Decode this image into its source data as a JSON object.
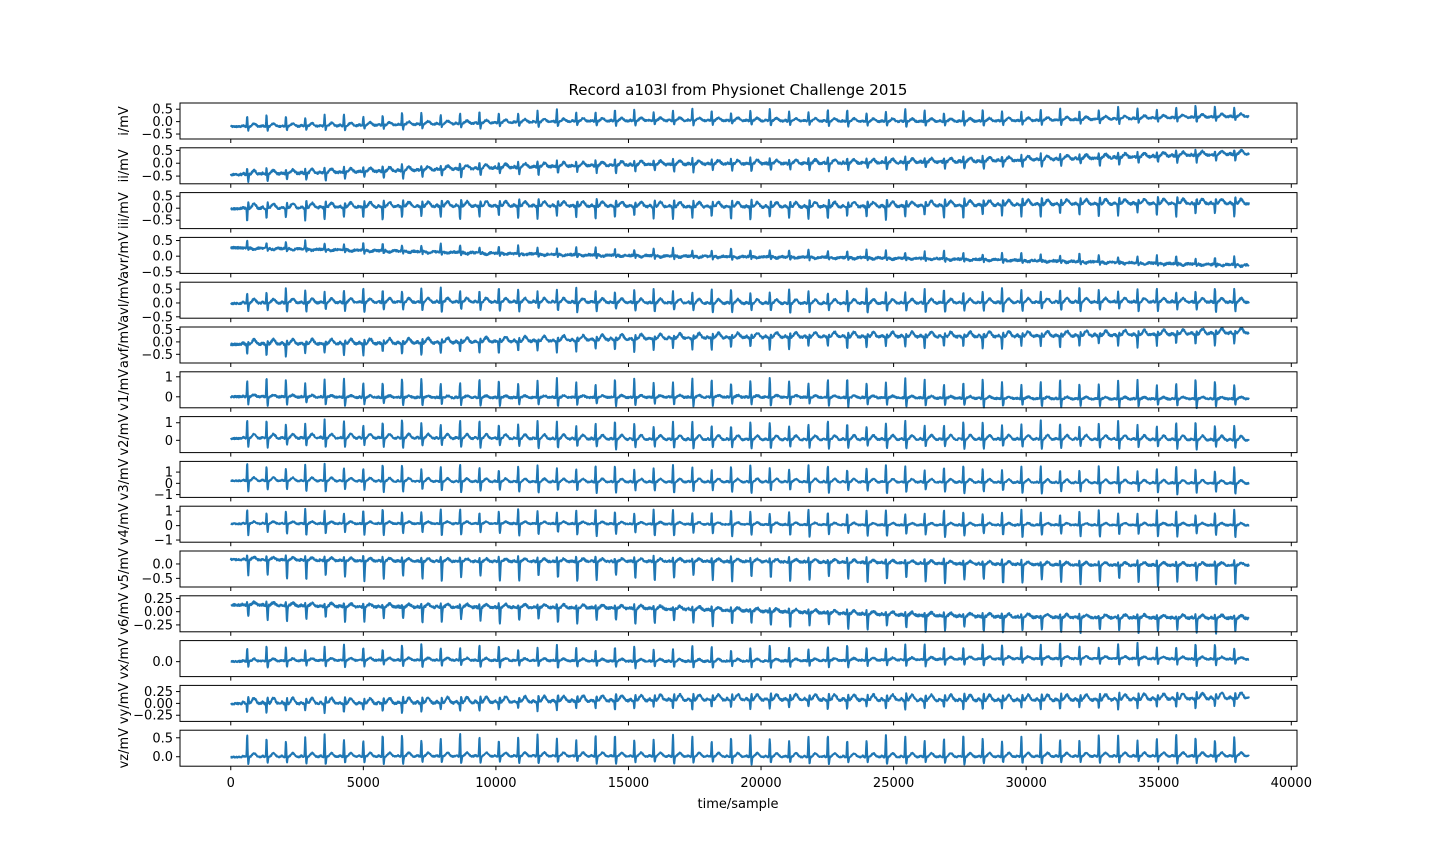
{
  "figure": {
    "title": "Record a103l from Physionet Challenge 2015",
    "xlabel": "time/sample"
  },
  "chart_data": {
    "type": "line",
    "title": "Record a103l from Physionet Challenge 2015",
    "xlabel": "time/sample",
    "xlim": [
      -1915,
      40215
    ],
    "xticks": [
      0,
      5000,
      10000,
      15000,
      20000,
      25000,
      30000,
      35000,
      40000
    ],
    "n_samples": 38400,
    "grid": false,
    "color": "#1f77b4",
    "panels": [
      {
        "ylabel": "i/mV",
        "ylim": [
          -0.7,
          0.75
        ],
        "yticks": [
          -0.5,
          0.0,
          0.5
        ],
        "yticklabels": [
          "−0.5",
          "0.0",
          "0.5"
        ],
        "baseline_start": -0.15,
        "baseline_end": 0.15,
        "r_amp": 0.5,
        "s_amp": -0.2,
        "t_amp": 0.12,
        "noise": 0.03,
        "wander": 0.12
      },
      {
        "ylabel": "ii/mV",
        "ylim": [
          -0.8,
          0.6
        ],
        "yticks": [
          -0.5,
          0.0,
          0.5
        ],
        "yticklabels": [
          "−0.5",
          "0.0",
          "0.5"
        ],
        "baseline_start": -0.4,
        "baseline_end": 0.3,
        "r_amp": 0.25,
        "s_amp": -0.3,
        "t_amp": 0.15,
        "noise": 0.04,
        "wander": 0.1
      },
      {
        "ylabel": "iii/mV",
        "ylim": [
          -0.85,
          0.65
        ],
        "yticks": [
          -0.5,
          0.0,
          0.5
        ],
        "yticklabels": [
          "−0.5",
          "0.0",
          "0.5"
        ],
        "baseline_start": 0.0,
        "baseline_end": 0.15,
        "r_amp": -0.55,
        "s_amp": 0.3,
        "t_amp": 0.2,
        "noise": 0.04,
        "wander": 0.08
      },
      {
        "ylabel": "avr/mV",
        "ylim": [
          -0.55,
          0.6
        ],
        "yticks": [
          -0.5,
          0.0,
          0.5
        ],
        "yticklabels": [
          "−0.5",
          "0.0",
          "0.5"
        ],
        "baseline_start": 0.25,
        "baseline_end": -0.25,
        "r_amp": 0.25,
        "s_amp": -0.1,
        "t_amp": -0.05,
        "noise": 0.03,
        "wander": 0.05
      },
      {
        "ylabel": "avl/mV",
        "ylim": [
          -0.55,
          0.75
        ],
        "yticks": [
          -0.5,
          0.0,
          0.5
        ],
        "yticklabels": [
          "−0.5",
          "0.0",
          "0.5"
        ],
        "baseline_start": 0.0,
        "baseline_end": 0.0,
        "r_amp": 0.55,
        "s_amp": -0.35,
        "t_amp": 0.15,
        "noise": 0.03,
        "wander": 0.05
      },
      {
        "ylabel": "avf/mV",
        "ylim": [
          -0.85,
          0.6
        ],
        "yticks": [
          -0.5,
          0.0,
          0.5
        ],
        "yticklabels": [
          "−0.5",
          "0.0",
          "0.5"
        ],
        "baseline_start": -0.1,
        "baseline_end": 0.35,
        "r_amp": -0.5,
        "s_amp": 0.15,
        "t_amp": 0.2,
        "noise": 0.04,
        "wander": 0.08
      },
      {
        "ylabel": "v1/mV",
        "ylim": [
          -0.55,
          1.25
        ],
        "yticks": [
          0,
          1
        ],
        "yticklabels": [
          "0",
          "1"
        ],
        "baseline_start": 0.0,
        "baseline_end": -0.1,
        "r_amp": 1.0,
        "s_amp": -0.45,
        "t_amp": 0.1,
        "noise": 0.04,
        "wander": 0.05
      },
      {
        "ylabel": "v2/mV",
        "ylim": [
          -0.7,
          1.35
        ],
        "yticks": [
          0,
          1
        ],
        "yticklabels": [
          "0",
          "1"
        ],
        "baseline_start": 0.1,
        "baseline_end": 0.0,
        "r_amp": 1.1,
        "s_amp": -0.55,
        "t_amp": 0.25,
        "noise": 0.04,
        "wander": 0.05
      },
      {
        "ylabel": "v3/mV",
        "ylim": [
          -1.25,
          1.95
        ],
        "yticks": [
          -1,
          0,
          1
        ],
        "yticklabels": [
          "−1",
          "0",
          "1"
        ],
        "baseline_start": 0.2,
        "baseline_end": 0.0,
        "r_amp": 1.6,
        "s_amp": -1.0,
        "t_amp": 0.3,
        "noise": 0.05,
        "wander": 0.05
      },
      {
        "ylabel": "v4/mV",
        "ylim": [
          -1.15,
          1.35
        ],
        "yticks": [
          -1,
          0,
          1
        ],
        "yticklabels": [
          "−1",
          "0",
          "1"
        ],
        "baseline_start": 0.15,
        "baseline_end": 0.0,
        "r_amp": 1.1,
        "s_amp": -0.85,
        "t_amp": 0.15,
        "noise": 0.04,
        "wander": 0.04
      },
      {
        "ylabel": "v5/mV",
        "ylim": [
          -0.8,
          0.45
        ],
        "yticks": [
          -0.5,
          0.0
        ],
        "yticklabels": [
          "−0.5",
          "0.0"
        ],
        "baseline_start": 0.15,
        "baseline_end": -0.05,
        "r_amp": 0.2,
        "s_amp": -0.7,
        "t_amp": 0.1,
        "noise": 0.03,
        "wander": 0.05
      },
      {
        "ylabel": "v6/mV",
        "ylim": [
          -0.38,
          0.3
        ],
        "yticks": [
          -0.25,
          0.0,
          0.25
        ],
        "yticklabels": [
          "−0.25",
          "0.00",
          "0.25"
        ],
        "baseline_start": 0.15,
        "baseline_end": -0.15,
        "r_amp": 0.08,
        "s_amp": -0.3,
        "t_amp": 0.06,
        "noise": 0.02,
        "wander": 0.05
      },
      {
        "ylabel": "vx/mV",
        "ylim": [
          -0.32,
          0.45
        ],
        "yticks": [
          0.0
        ],
        "yticklabels": [
          "0.0"
        ],
        "baseline_start": 0.0,
        "baseline_end": 0.05,
        "r_amp": 0.35,
        "s_amp": -0.15,
        "t_amp": 0.05,
        "noise": 0.015,
        "wander": 0.04
      },
      {
        "ylabel": "vy/mV",
        "ylim": [
          -0.38,
          0.38
        ],
        "yticks": [
          -0.25,
          0.0,
          0.25
        ],
        "yticklabels": [
          "−0.25",
          "0.00",
          "0.25"
        ],
        "baseline_start": 0.0,
        "baseline_end": 0.1,
        "r_amp": -0.2,
        "s_amp": 0.15,
        "t_amp": 0.12,
        "noise": 0.02,
        "wander": 0.04
      },
      {
        "ylabel": "vz/mV",
        "ylim": [
          -0.25,
          0.7
        ],
        "yticks": [
          0.0,
          0.5
        ],
        "yticklabels": [
          "0.0",
          "0.5"
        ],
        "baseline_start": 0.0,
        "baseline_end": 0.0,
        "r_amp": 0.6,
        "s_amp": -0.2,
        "t_amp": 0.1,
        "noise": 0.015,
        "wander": 0.02
      }
    ]
  }
}
